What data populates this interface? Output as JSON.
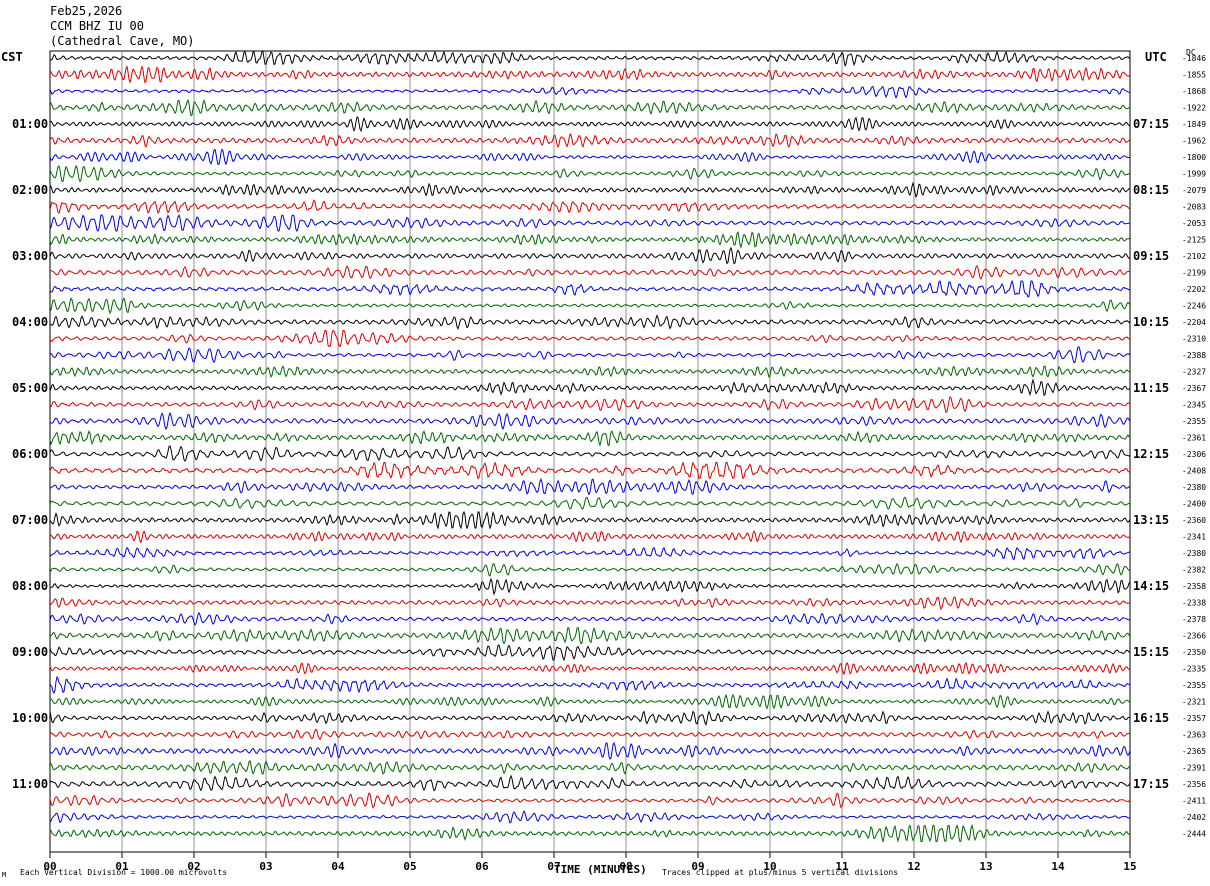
{
  "header": {
    "date": "Feb25,2026",
    "station": "CCM BHZ IU 00",
    "location": "(Cathedral Cave, MO)"
  },
  "left_axis_label": "CST",
  "right_axis_label": "UTC",
  "dc_label": "DC",
  "mark": "M",
  "footer": {
    "scale_note": "Each Vertical Division = 1000.00 microvolts",
    "clip_note": "Traces clipped at plus/minus 5 vertical divisions"
  },
  "chart_data": {
    "type": "line",
    "title": "",
    "xlabel": "TIME (MINUTES)",
    "xlim": [
      0,
      15
    ],
    "x_ticks": [
      "00",
      "01",
      "02",
      "03",
      "04",
      "05",
      "06",
      "07",
      "08",
      "09",
      "10",
      "11",
      "12",
      "13",
      "14",
      "15"
    ],
    "trace_colors": [
      "#000000",
      "#dd0000",
      "#0000dd",
      "#006600"
    ],
    "left_hour_labels": [
      "01:00",
      "02:00",
      "03:00",
      "04:00",
      "05:00",
      "06:00",
      "07:00",
      "08:00",
      "09:00",
      "10:00",
      "11:00"
    ],
    "right_hour_labels": [
      "07:15",
      "08:15",
      "09:15",
      "10:15",
      "11:15",
      "12:15",
      "13:15",
      "14:15",
      "15:15",
      "16:15",
      "17:15"
    ],
    "dc_offsets": [
      "-1846",
      "-1855",
      "-1868",
      "-1922",
      "-1849",
      "-1962",
      "-1800",
      "-1999",
      "-2079",
      "-2083",
      "-2053",
      "-2125",
      "-2102",
      "-2199",
      "-2202",
      "-2246",
      "-2204",
      "-2310",
      "-2388",
      "-2327",
      "-2367",
      "-2345",
      "-2355",
      "-2361",
      "-2306",
      "-2408",
      "-2380",
      "-2400",
      "-2360",
      "-2341",
      "-2380",
      "-2382",
      "-2358",
      "-2338",
      "-2378",
      "-2366",
      "-2350",
      "-2335",
      "-2355",
      "-2321",
      "-2357",
      "-2363",
      "-2365",
      "-2391",
      "-2356",
      "-2411",
      "-2402",
      "-2444"
    ],
    "series_rows": 48,
    "row_pattern": [
      "black",
      "red",
      "blue",
      "green"
    ]
  }
}
